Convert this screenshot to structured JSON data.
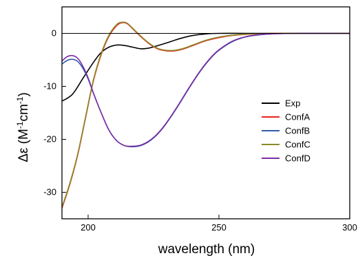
{
  "chart_data": {
    "type": "line",
    "xlabel": "wavelength (nm)",
    "ylabel": {
      "base": "Δε (M",
      "sup1": "-1",
      "mid": "cm",
      "sup2": "-1",
      "end": ")"
    },
    "xlim": [
      190,
      300
    ],
    "ylim": [
      -35,
      5
    ],
    "xticks": [
      200,
      250,
      300
    ],
    "yticks": [
      0,
      -10,
      -20,
      -30
    ],
    "xtick_labels": [
      "200",
      "250",
      "300"
    ],
    "ytick_labels": [
      "0",
      "-10",
      "-20",
      "-30"
    ],
    "zero_line": true,
    "grid": false,
    "legend_position": "right-center",
    "series": [
      {
        "name": "Exp",
        "color": "#000000",
        "points": [
          [
            190,
            -12.8
          ],
          [
            194,
            -11.5
          ],
          [
            198,
            -8.5
          ],
          [
            202,
            -5.5
          ],
          [
            205,
            -3.6
          ],
          [
            208,
            -2.6
          ],
          [
            211,
            -2.2
          ],
          [
            214,
            -2.3
          ],
          [
            217,
            -2.6
          ],
          [
            220,
            -2.9
          ],
          [
            223,
            -2.8
          ],
          [
            226,
            -2.4
          ],
          [
            230,
            -1.8
          ],
          [
            235,
            -1.0
          ],
          [
            240,
            -0.4
          ],
          [
            245,
            -0.1
          ],
          [
            250,
            0
          ],
          [
            260,
            0
          ],
          [
            270,
            0
          ],
          [
            280,
            0
          ],
          [
            290,
            0
          ],
          [
            300,
            0
          ]
        ]
      },
      {
        "name": "ConfA",
        "color": "#e8211c",
        "points": [
          [
            190,
            -33
          ],
          [
            193,
            -28.5
          ],
          [
            196,
            -23
          ],
          [
            199,
            -16
          ],
          [
            202,
            -9
          ],
          [
            205,
            -4
          ],
          [
            208,
            -0.5
          ],
          [
            211,
            1.5
          ],
          [
            213,
            2
          ],
          [
            215,
            1.8
          ],
          [
            218,
            0.4
          ],
          [
            221,
            -1.0
          ],
          [
            224,
            -2.2
          ],
          [
            227,
            -3.0
          ],
          [
            230,
            -3.3
          ],
          [
            233,
            -3.3
          ],
          [
            236,
            -3.0
          ],
          [
            240,
            -2.3
          ],
          [
            245,
            -1.4
          ],
          [
            250,
            -0.8
          ],
          [
            255,
            -0.4
          ],
          [
            260,
            -0.2
          ],
          [
            265,
            -0.1
          ],
          [
            270,
            0
          ],
          [
            280,
            0
          ],
          [
            290,
            0
          ],
          [
            300,
            0
          ]
        ]
      },
      {
        "name": "ConfB",
        "color": "#2f5aa8",
        "points": [
          [
            190,
            -5.8
          ],
          [
            192,
            -5.1
          ],
          [
            194,
            -4.9
          ],
          [
            196,
            -5.3
          ],
          [
            198,
            -6.6
          ],
          [
            200,
            -8.6
          ],
          [
            202,
            -11.3
          ],
          [
            205,
            -15
          ],
          [
            208,
            -18.3
          ],
          [
            211,
            -20.3
          ],
          [
            214,
            -21.2
          ],
          [
            217,
            -21.4
          ],
          [
            220,
            -21.2
          ],
          [
            223,
            -20.5
          ],
          [
            226,
            -19.3
          ],
          [
            229,
            -17.6
          ],
          [
            232,
            -15.5
          ],
          [
            235,
            -13.2
          ],
          [
            238,
            -10.8
          ],
          [
            241,
            -8.5
          ],
          [
            244,
            -6.4
          ],
          [
            247,
            -4.6
          ],
          [
            250,
            -3.2
          ],
          [
            255,
            -1.6
          ],
          [
            260,
            -0.7
          ],
          [
            265,
            -0.3
          ],
          [
            270,
            -0.1
          ],
          [
            280,
            0
          ],
          [
            290,
            0
          ],
          [
            300,
            0
          ]
        ]
      },
      {
        "name": "ConfC",
        "color": "#8a8a2a",
        "points": [
          [
            190,
            -32.8
          ],
          [
            193,
            -28.3
          ],
          [
            196,
            -22.8
          ],
          [
            199,
            -15.8
          ],
          [
            202,
            -8.8
          ],
          [
            205,
            -3.8
          ],
          [
            208,
            -0.3
          ],
          [
            211,
            1.7
          ],
          [
            213,
            2.1
          ],
          [
            215,
            1.9
          ],
          [
            218,
            0.5
          ],
          [
            221,
            -0.9
          ],
          [
            224,
            -2.1
          ],
          [
            227,
            -2.9
          ],
          [
            230,
            -3.2
          ],
          [
            233,
            -3.2
          ],
          [
            236,
            -2.9
          ],
          [
            240,
            -2.2
          ],
          [
            245,
            -1.3
          ],
          [
            250,
            -0.7
          ],
          [
            255,
            -0.35
          ],
          [
            260,
            -0.15
          ],
          [
            265,
            -0.05
          ],
          [
            270,
            0
          ],
          [
            280,
            0
          ],
          [
            290,
            0
          ],
          [
            300,
            0
          ]
        ]
      },
      {
        "name": "ConfD",
        "color": "#7e2ba3",
        "points": [
          [
            190,
            -5.2
          ],
          [
            192,
            -4.4
          ],
          [
            194,
            -4.2
          ],
          [
            196,
            -4.7
          ],
          [
            198,
            -6.2
          ],
          [
            200,
            -8.4
          ],
          [
            202,
            -11.2
          ],
          [
            205,
            -15
          ],
          [
            208,
            -18.3
          ],
          [
            211,
            -20.3
          ],
          [
            214,
            -21.2
          ],
          [
            217,
            -21.3
          ],
          [
            220,
            -21.1
          ],
          [
            223,
            -20.4
          ],
          [
            226,
            -19.2
          ],
          [
            229,
            -17.5
          ],
          [
            232,
            -15.4
          ],
          [
            235,
            -13.1
          ],
          [
            238,
            -10.7
          ],
          [
            241,
            -8.4
          ],
          [
            244,
            -6.3
          ],
          [
            247,
            -4.5
          ],
          [
            250,
            -3.1
          ],
          [
            255,
            -1.5
          ],
          [
            260,
            -0.65
          ],
          [
            265,
            -0.25
          ],
          [
            270,
            -0.1
          ],
          [
            280,
            0
          ],
          [
            290,
            0
          ],
          [
            300,
            0
          ]
        ]
      }
    ]
  }
}
